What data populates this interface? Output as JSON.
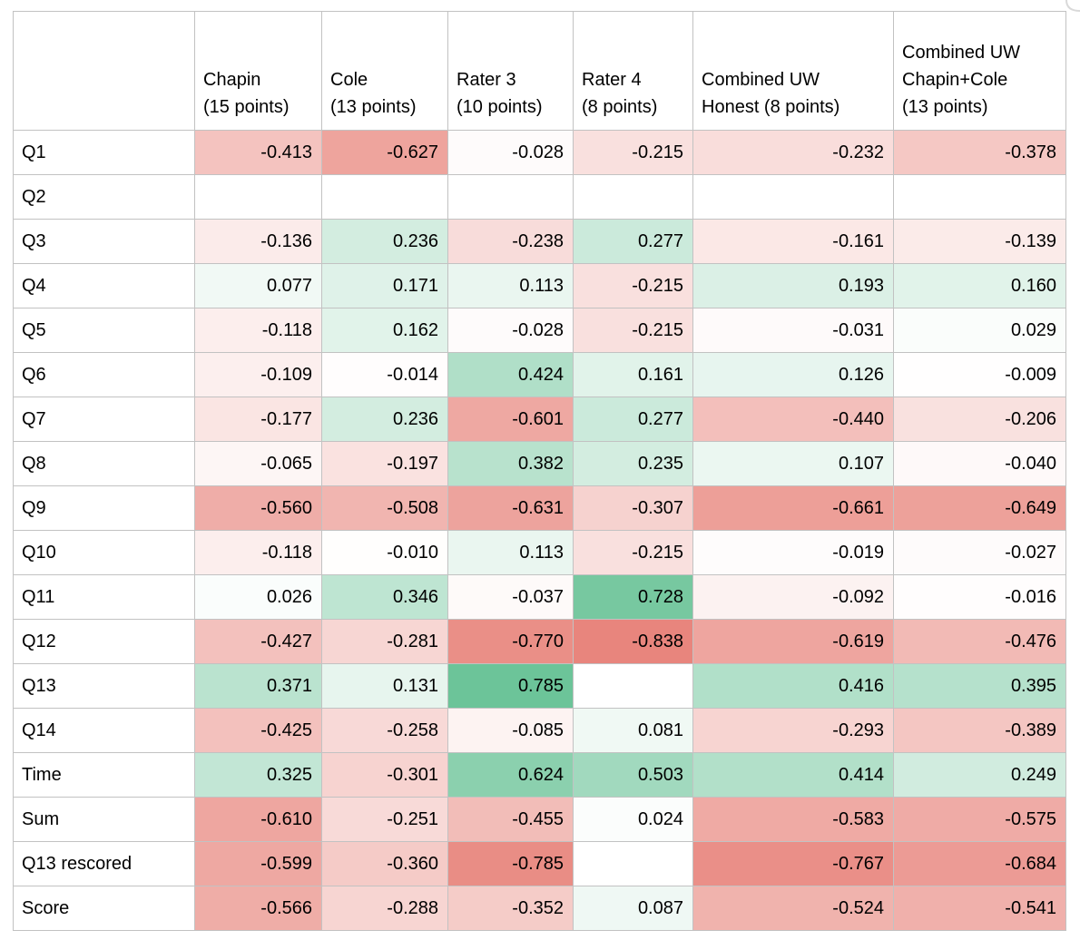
{
  "chart_data": {
    "type": "heatmap",
    "title": "",
    "corner_label": "",
    "columns": [
      {
        "label": "Chapin (15 points)",
        "lines": [
          "Chapin",
          "(15 points)"
        ]
      },
      {
        "label": "Cole (13 points)",
        "lines": [
          "Cole",
          "(13 points)"
        ]
      },
      {
        "label": "Rater 3 (10 points)",
        "lines": [
          "Rater 3",
          "(10 points)"
        ]
      },
      {
        "label": "Rater 4 (8 points)",
        "lines": [
          "Rater 4",
          "(8 points)"
        ]
      },
      {
        "label": "Combined UW Honest (8 points)",
        "lines": [
          "Combined UW",
          "Honest (8 points)"
        ]
      },
      {
        "label": "Combined UW Chapin+Cole (13 points)",
        "lines": [
          "Combined UW",
          "Chapin+Cole",
          "(13 points)"
        ]
      }
    ],
    "rows": [
      "Q1",
      "Q2",
      "Q3",
      "Q4",
      "Q5",
      "Q6",
      "Q7",
      "Q8",
      "Q9",
      "Q10",
      "Q11",
      "Q12",
      "Q13",
      "Q14",
      "Time",
      "Sum",
      "Q13 rescored",
      "Score"
    ],
    "values": [
      [
        -0.413,
        -0.627,
        -0.028,
        -0.215,
        -0.232,
        -0.378
      ],
      [
        null,
        null,
        null,
        null,
        null,
        null
      ],
      [
        -0.136,
        0.236,
        -0.238,
        0.277,
        -0.161,
        -0.139
      ],
      [
        0.077,
        0.171,
        0.113,
        -0.215,
        0.193,
        0.16
      ],
      [
        -0.118,
        0.162,
        -0.028,
        -0.215,
        -0.031,
        0.029
      ],
      [
        -0.109,
        -0.014,
        0.424,
        0.161,
        0.126,
        -0.009
      ],
      [
        -0.177,
        0.236,
        -0.601,
        0.277,
        -0.44,
        -0.206
      ],
      [
        -0.065,
        -0.197,
        0.382,
        0.235,
        0.107,
        -0.04
      ],
      [
        -0.56,
        -0.508,
        -0.631,
        -0.307,
        -0.661,
        -0.649
      ],
      [
        -0.118,
        -0.01,
        0.113,
        -0.215,
        -0.019,
        -0.027
      ],
      [
        0.026,
        0.346,
        -0.037,
        0.728,
        -0.092,
        -0.016
      ],
      [
        -0.427,
        -0.281,
        -0.77,
        -0.838,
        -0.619,
        -0.476
      ],
      [
        0.371,
        0.131,
        0.785,
        null,
        0.416,
        0.395
      ],
      [
        -0.425,
        -0.258,
        -0.085,
        0.081,
        -0.293,
        -0.389
      ],
      [
        0.325,
        -0.301,
        0.624,
        0.503,
        0.414,
        0.249
      ],
      [
        -0.61,
        -0.251,
        -0.455,
        0.024,
        -0.583,
        -0.575
      ],
      [
        -0.599,
        -0.36,
        -0.785,
        null,
        -0.767,
        -0.684
      ],
      [
        -0.566,
        -0.288,
        -0.352,
        0.087,
        -0.524,
        -0.541
      ]
    ],
    "value_format": "3-decimals",
    "color_scale": {
      "negative": "#e67c73",
      "zero": "#ffffff",
      "positive": "#57bb8a",
      "abs_max": 0.9
    },
    "grid": true,
    "grid_color": "#c2c2c2",
    "legend_position": "none"
  }
}
